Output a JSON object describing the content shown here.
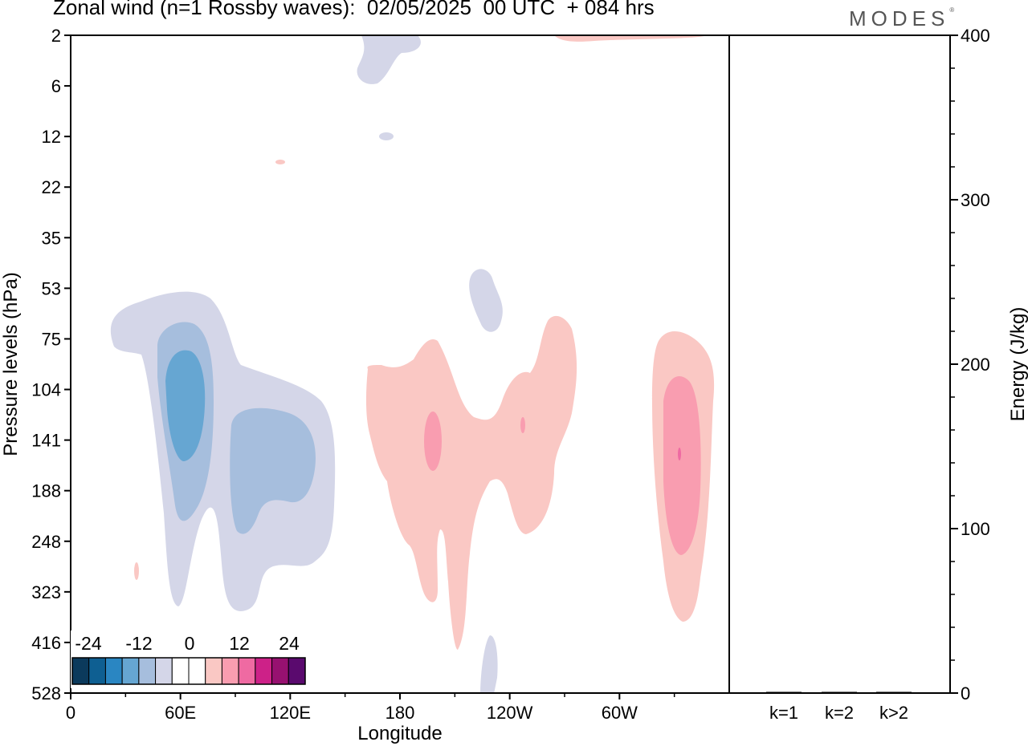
{
  "title": "Zonal wind (n=1 Rossby waves):  02/05/2025  00 UTC  + 084 hrs",
  "brand": "MODES",
  "chart_data": [
    {
      "type": "heatmap",
      "xlabel": "Longitude",
      "ylabel": "Pressure levels (hPa)",
      "x_ticks": [
        "0",
        "60E",
        "120E",
        "180",
        "120W",
        "60W"
      ],
      "y_ticks": [
        "2",
        "6",
        "12",
        "22",
        "35",
        "53",
        "75",
        "104",
        "141",
        "188",
        "248",
        "323",
        "416",
        "528"
      ],
      "colorbar": {
        "labels": [
          "-24",
          "-12",
          "0",
          "12",
          "24"
        ],
        "colors": [
          "#0b3a5c",
          "#0e5f92",
          "#2a86c2",
          "#66a6d2",
          "#a6bedd",
          "#d4d6e8",
          "#ffffff",
          "#ffffff",
          "#fac8c4",
          "#f99db0",
          "#ef6aa2",
          "#cd2188",
          "#971170",
          "#5a0a6e"
        ]
      }
    },
    {
      "type": "bar",
      "categories": [
        "k=1",
        "k=2",
        "k>2"
      ],
      "values": [
        0.6,
        0.3,
        0.3
      ],
      "ylabel": "Energy (J/kg)",
      "ylim": [
        0,
        400
      ],
      "y_ticks": [
        "0",
        "100",
        "200",
        "300",
        "400"
      ]
    }
  ]
}
